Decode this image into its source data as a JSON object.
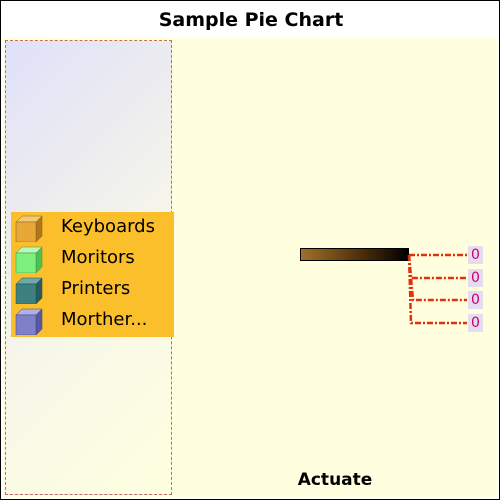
{
  "chart_data": {
    "type": "pie",
    "title": "Sample Pie Chart",
    "footer": "Actuate",
    "categories": [
      "Keyboards",
      "Moritors",
      "Printers",
      "Morther..."
    ],
    "values": [
      0,
      0,
      0,
      0
    ],
    "data_labels": [
      "0",
      "0",
      "0",
      "0"
    ],
    "legend": {
      "placement": "left"
    },
    "colors": [
      "#e8a838",
      "#7cf07c",
      "#3e8080",
      "#8080c8"
    ]
  }
}
